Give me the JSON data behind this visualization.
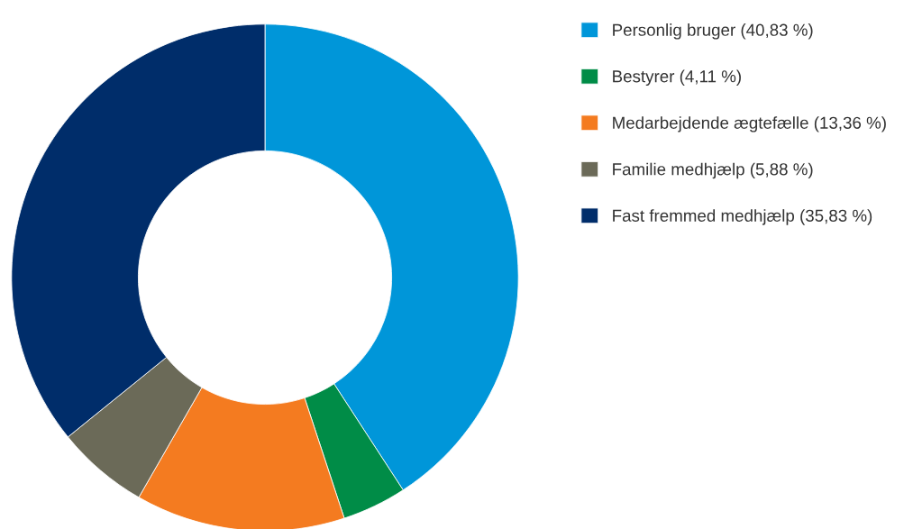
{
  "chart_data": {
    "type": "donut",
    "categories": [
      "Personlig bruger (40,83 %)",
      "Bestyrer (4,11 %)",
      "Medarbejdende ægtefælle (13,36 %)",
      "Familie medhjælp (5,88 %)",
      "Fast fremmed medhjælp (35,83 %)"
    ],
    "values": [
      40.83,
      4.11,
      13.36,
      5.88,
      35.83
    ],
    "colors": [
      "#0096d9",
      "#008c47",
      "#f47b20",
      "#6b6a58",
      "#002d6a"
    ],
    "legend": "right"
  }
}
